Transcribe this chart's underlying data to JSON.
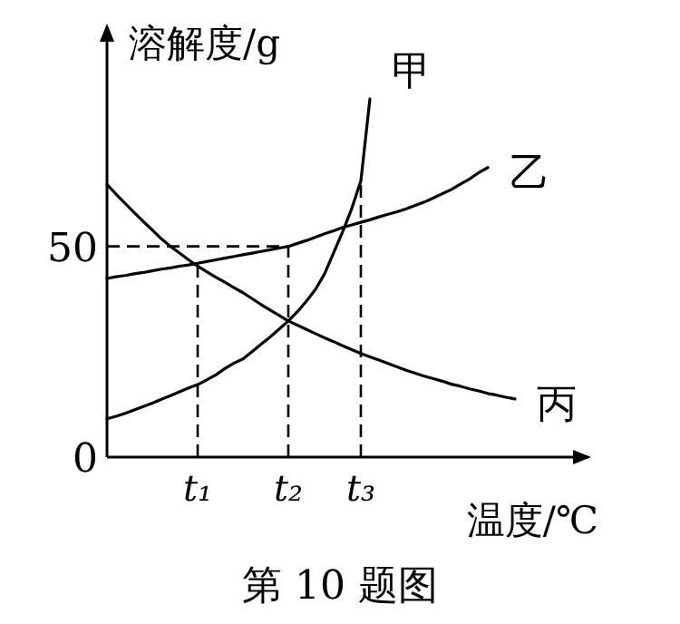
{
  "chart_data": {
    "type": "line",
    "ylabel": "溶解度/g",
    "xlabel": "温度/℃",
    "annotations": [
      "第 10 题图"
    ],
    "ylim": [
      0,
      102
    ],
    "yticks": [
      0,
      50
    ],
    "categories": [
      null,
      null,
      null,
      null,
      null,
      null,
      null,
      null,
      null,
      null,
      "t₁",
      null,
      null,
      null,
      null,
      null,
      null,
      null,
      null,
      null,
      "t₂",
      null,
      null,
      null,
      null,
      null,
      null,
      null,
      "t₃",
      null,
      null,
      null,
      null,
      null,
      null,
      null,
      null,
      null,
      null,
      null,
      null,
      null,
      null,
      null,
      null,
      null,
      null,
      null,
      null,
      null,
      null,
      null,
      null,
      null
    ],
    "series": [
      {
        "name": "甲",
        "color": "#000000",
        "values": [
          9.1,
          9.7,
          10.4,
          11.2,
          12,
          12.8,
          13.7,
          14.6,
          15.5,
          16.4,
          17.2,
          18.3,
          19.5,
          21,
          22.3,
          23.3,
          25,
          26.8,
          28.5,
          30.4,
          32.3,
          34.5,
          37,
          39.8,
          43.5,
          48.5,
          53.5,
          59,
          65.5,
          85,
          null,
          null,
          null,
          null,
          null,
          null,
          null,
          null,
          null,
          null,
          null,
          null,
          null,
          null,
          null,
          null,
          null,
          null,
          null,
          null,
          null,
          null,
          null,
          null
        ]
      },
      {
        "name": "乙",
        "color": "#000000",
        "values": [
          42.4,
          42.8,
          43.1,
          43.5,
          43.8,
          44.2,
          44.6,
          44.9,
          45.3,
          45.6,
          46,
          46.4,
          46.8,
          47.2,
          47.6,
          48,
          48.4,
          48.8,
          49.2,
          49.6,
          50,
          50.7,
          51.4,
          52.2,
          53,
          53.7,
          54.5,
          55.1,
          55.7,
          56.3,
          57,
          57.6,
          58.2,
          58.9,
          59.7,
          60.5,
          61.5,
          62.5,
          63.5,
          64.8,
          66,
          67.5,
          68.7,
          null,
          null,
          null,
          null,
          null,
          null,
          null,
          null,
          null,
          null,
          null
        ]
      },
      {
        "name": "丙",
        "color": "#000000",
        "values": [
          64.7,
          62.4,
          60.2,
          58,
          55.9,
          53.9,
          51.8,
          50,
          48.4,
          46.8,
          45.3,
          44,
          42.7,
          41.5,
          40.2,
          39,
          37.6,
          36.2,
          34.9,
          33.6,
          32.3,
          31.3,
          30.3,
          29.3,
          28.3,
          27.4,
          26.4,
          25.5,
          24.6,
          23.8,
          23,
          22.2,
          21.4,
          20.6,
          19.9,
          19.2,
          18.6,
          18,
          17.3,
          16.8,
          16.2,
          15.7,
          15.1,
          14.7,
          14.2,
          13.8,
          null,
          null,
          null,
          null,
          null,
          null,
          null,
          null
        ]
      }
    ],
    "ref_lines": [
      {
        "axis": "y",
        "value": 50,
        "line_style": "dashed",
        "color": "#000000"
      },
      {
        "axis": "x",
        "value": "t₁",
        "line_style": "dashed",
        "color": "#000000"
      },
      {
        "axis": "x",
        "value": "t₂",
        "line_style": "dashed",
        "color": "#000000"
      },
      {
        "axis": "x",
        "value": "t₃",
        "line_style": "dashed",
        "color": "#000000"
      }
    ]
  }
}
